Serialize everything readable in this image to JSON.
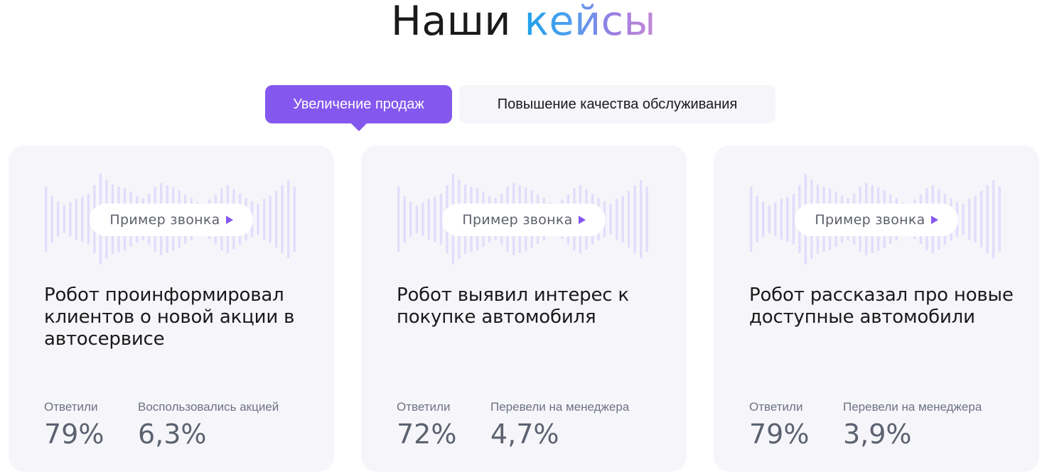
{
  "header": {
    "title_main": "Наши",
    "title_accent": "кейсы"
  },
  "tabs": [
    {
      "label": "Увеличение продаж",
      "active": true
    },
    {
      "label": "Повышение качества обслуживания",
      "active": false
    }
  ],
  "play_icon": "play-icon",
  "accent_color": "#8458ee",
  "cards": [
    {
      "play_label": "Пример звонка",
      "title": "Робот проинформировал клиентов о новой акции в автосервисе",
      "stats": [
        {
          "label": "Ответили",
          "value": "79%"
        },
        {
          "label": "Воспользовались акцией",
          "value": "6,3%"
        }
      ]
    },
    {
      "play_label": "Пример звонка",
      "title": "Робот выявил интерес к покупке автомобиля",
      "stats": [
        {
          "label": "Ответили",
          "value": "72%"
        },
        {
          "label": "Перевели на менеджера",
          "value": "4,7%"
        }
      ]
    },
    {
      "play_label": "Пример звонка",
      "title": "Робот рассказал про новые доступные автомобили",
      "stats": [
        {
          "label": "Ответили",
          "value": "79%"
        },
        {
          "label": "Перевели на менеджера",
          "value": "3,9%"
        }
      ]
    }
  ]
}
